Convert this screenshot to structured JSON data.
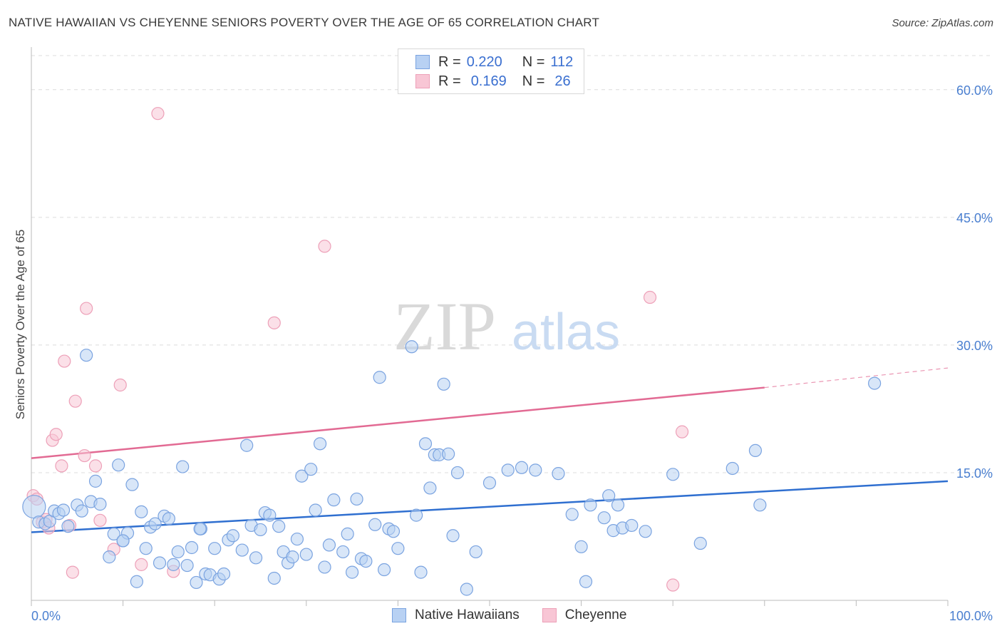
{
  "title": "NATIVE HAWAIIAN VS CHEYENNE SENIORS POVERTY OVER THE AGE OF 65 CORRELATION CHART",
  "source": "Source: ZipAtlas.com",
  "watermark": {
    "zip": "ZIP",
    "atlas": "atlas"
  },
  "legend_top": [
    {
      "r_label": "R =",
      "r_value": "0.220",
      "n_label": "N =",
      "n_value": "112"
    },
    {
      "r_label": "R =",
      "r_value": "0.169",
      "n_label": "N =",
      "n_value": "26"
    }
  ],
  "legend_bottom": [
    "Native Hawaiians",
    "Cheyenne"
  ],
  "colors": {
    "blue_fill": "#b8d1f3",
    "blue_stroke": "#7aa3e0",
    "blue_line": "#2f6fd0",
    "pink_fill": "#f8c6d5",
    "pink_stroke": "#eda0b8",
    "pink_line": "#e26a93",
    "tick": "#4a7fd0",
    "grid": "#dcdcdc"
  },
  "chart_data": {
    "type": "scatter",
    "xlabel": "",
    "ylabel": "Seniors Poverty Over the Age of 65",
    "xlim": [
      0,
      100
    ],
    "ylim": [
      0,
      60
    ],
    "x_tick_labels": [
      "0.0%",
      "100.0%"
    ],
    "y_ticks": [
      15,
      30,
      45,
      60
    ],
    "y_tick_labels": [
      "15.0%",
      "30.0%",
      "45.0%",
      "60.0%"
    ],
    "grid": true,
    "series": [
      {
        "name": "Native Hawaiians",
        "r": 0.22,
        "n": 112,
        "trend": {
          "x0": 0,
          "y0": 8.0,
          "x1": 100,
          "y1": 14.0
        },
        "points": [
          [
            0.3,
            11.0
          ],
          [
            0.8,
            9.2
          ],
          [
            1.5,
            9.0
          ],
          [
            2.0,
            9.3
          ],
          [
            2.5,
            10.5
          ],
          [
            3.0,
            10.2
          ],
          [
            3.5,
            10.6
          ],
          [
            4.0,
            8.7
          ],
          [
            5.0,
            11.2
          ],
          [
            5.5,
            10.5
          ],
          [
            6.5,
            11.6
          ],
          [
            7.0,
            14.0
          ],
          [
            7.5,
            11.3
          ],
          [
            8.5,
            5.1
          ],
          [
            9.0,
            7.8
          ],
          [
            9.5,
            15.9
          ],
          [
            10.0,
            7.0
          ],
          [
            10.5,
            7.9
          ],
          [
            11.0,
            13.6
          ],
          [
            11.5,
            2.2
          ],
          [
            12.0,
            10.4
          ],
          [
            12.5,
            6.1
          ],
          [
            13.0,
            8.6
          ],
          [
            13.5,
            9.0
          ],
          [
            14.0,
            4.4
          ],
          [
            14.5,
            9.9
          ],
          [
            15.0,
            9.6
          ],
          [
            15.5,
            4.2
          ],
          [
            16.0,
            5.7
          ],
          [
            16.5,
            15.7
          ],
          [
            17.0,
            4.1
          ],
          [
            17.5,
            6.2
          ],
          [
            18.0,
            2.1
          ],
          [
            18.5,
            8.4
          ],
          [
            19.0,
            3.1
          ],
          [
            19.5,
            3.0
          ],
          [
            20.0,
            6.1
          ],
          [
            20.5,
            2.5
          ],
          [
            21.0,
            3.1
          ],
          [
            21.5,
            7.1
          ],
          [
            22.0,
            7.6
          ],
          [
            23.0,
            5.9
          ],
          [
            23.5,
            18.2
          ],
          [
            24.0,
            8.8
          ],
          [
            24.5,
            5.0
          ],
          [
            25.0,
            8.3
          ],
          [
            25.5,
            10.3
          ],
          [
            26.0,
            10.0
          ],
          [
            26.5,
            2.6
          ],
          [
            27.0,
            8.7
          ],
          [
            27.5,
            5.7
          ],
          [
            28.0,
            4.4
          ],
          [
            28.5,
            5.1
          ],
          [
            29.0,
            7.2
          ],
          [
            29.5,
            14.6
          ],
          [
            30.0,
            5.4
          ],
          [
            30.5,
            15.4
          ],
          [
            31.0,
            10.6
          ],
          [
            31.5,
            18.4
          ],
          [
            32.0,
            3.9
          ],
          [
            32.5,
            6.5
          ],
          [
            33.0,
            11.8
          ],
          [
            34.0,
            5.7
          ],
          [
            34.5,
            7.8
          ],
          [
            35.0,
            3.3
          ],
          [
            35.5,
            11.9
          ],
          [
            36.0,
            4.9
          ],
          [
            36.5,
            4.6
          ],
          [
            37.5,
            8.9
          ],
          [
            38.0,
            26.2
          ],
          [
            38.5,
            3.6
          ],
          [
            39.0,
            8.4
          ],
          [
            39.5,
            8.1
          ],
          [
            40.0,
            6.1
          ],
          [
            42.0,
            10.0
          ],
          [
            42.5,
            3.3
          ],
          [
            43.0,
            18.4
          ],
          [
            43.5,
            13.2
          ],
          [
            44.0,
            17.1
          ],
          [
            44.5,
            17.1
          ],
          [
            45.0,
            25.4
          ],
          [
            45.5,
            17.2
          ],
          [
            46.0,
            7.6
          ],
          [
            46.5,
            15.0
          ],
          [
            47.5,
            1.3
          ],
          [
            48.5,
            5.7
          ],
          [
            50.0,
            13.8
          ],
          [
            52.0,
            15.3
          ],
          [
            53.5,
            15.6
          ],
          [
            55.0,
            15.3
          ],
          [
            57.5,
            14.9
          ],
          [
            59.0,
            10.1
          ],
          [
            60.0,
            6.3
          ],
          [
            60.5,
            2.2
          ],
          [
            61.0,
            11.2
          ],
          [
            62.5,
            9.7
          ],
          [
            63.0,
            12.3
          ],
          [
            63.5,
            8.2
          ],
          [
            64.0,
            11.2
          ],
          [
            64.5,
            8.5
          ],
          [
            65.5,
            8.8
          ],
          [
            67.0,
            8.1
          ],
          [
            70.0,
            14.8
          ],
          [
            73.0,
            6.7
          ],
          [
            76.5,
            15.5
          ],
          [
            79.0,
            17.6
          ],
          [
            79.5,
            11.2
          ],
          [
            92.0,
            25.5
          ],
          [
            18.4,
            8.4
          ],
          [
            6.0,
            28.8
          ],
          [
            41.5,
            29.8
          ],
          [
            10.0,
            7.0
          ]
        ]
      },
      {
        "name": "Cheyenne",
        "r": 0.169,
        "n": 26,
        "trend": {
          "x0": 0,
          "y0": 16.7,
          "x1": 80,
          "y1": 25.0,
          "dash_x1": 100,
          "dash_y1": 27.3
        },
        "points": [
          [
            0.2,
            12.3
          ],
          [
            0.6,
            11.9
          ],
          [
            1.2,
            9.2
          ],
          [
            1.6,
            9.5
          ],
          [
            1.9,
            8.5
          ],
          [
            2.3,
            18.8
          ],
          [
            2.7,
            19.5
          ],
          [
            3.3,
            15.8
          ],
          [
            3.6,
            28.1
          ],
          [
            4.2,
            8.8
          ],
          [
            4.5,
            3.3
          ],
          [
            4.8,
            23.4
          ],
          [
            5.8,
            17.0
          ],
          [
            6.0,
            34.3
          ],
          [
            7.0,
            15.8
          ],
          [
            7.5,
            9.4
          ],
          [
            9.0,
            6.0
          ],
          [
            9.7,
            25.3
          ],
          [
            12.0,
            4.2
          ],
          [
            13.8,
            57.2
          ],
          [
            15.5,
            3.4
          ],
          [
            26.5,
            32.6
          ],
          [
            32.0,
            41.6
          ],
          [
            67.5,
            35.6
          ],
          [
            70.0,
            1.8
          ],
          [
            71.0,
            19.8
          ]
        ]
      }
    ]
  }
}
